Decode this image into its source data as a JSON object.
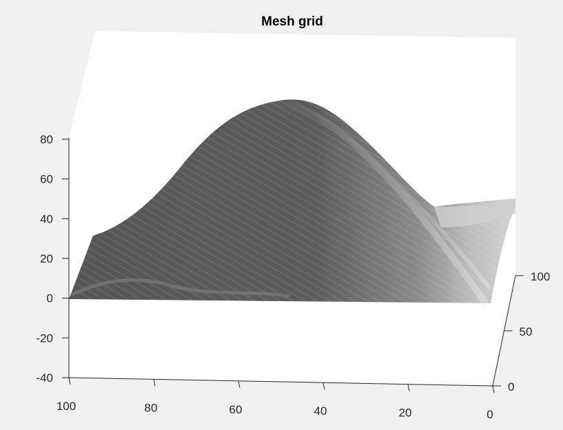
{
  "chart_data": {
    "type": "surface",
    "title": "Mesh grid",
    "xlabel": "",
    "ylabel": "",
    "zlabel": "",
    "xlim": [
      0,
      100
    ],
    "ylim": [
      0,
      100
    ],
    "zlim": [
      -40,
      80
    ],
    "x_ticks": [
      100,
      80,
      60,
      40,
      20,
      0
    ],
    "y_ticks": [
      0,
      50,
      100
    ],
    "z_ticks": [
      80,
      60,
      40,
      20,
      0,
      -20,
      -40
    ],
    "grid": false,
    "colormap": "gray",
    "surface": {
      "description_points": [
        {
          "x": 100,
          "y": 0,
          "z": 0
        },
        {
          "x": 0,
          "y": 0,
          "z": 0
        },
        {
          "x": 100,
          "y": 100,
          "z": 30
        },
        {
          "x": 0,
          "y": 100,
          "z": 50
        }
      ]
    },
    "colors": {
      "background": "#f0f0f0",
      "axes_face": "#ffffff",
      "surface_dark": "#5a5a5a",
      "surface_light": "#c8c8c8"
    }
  }
}
